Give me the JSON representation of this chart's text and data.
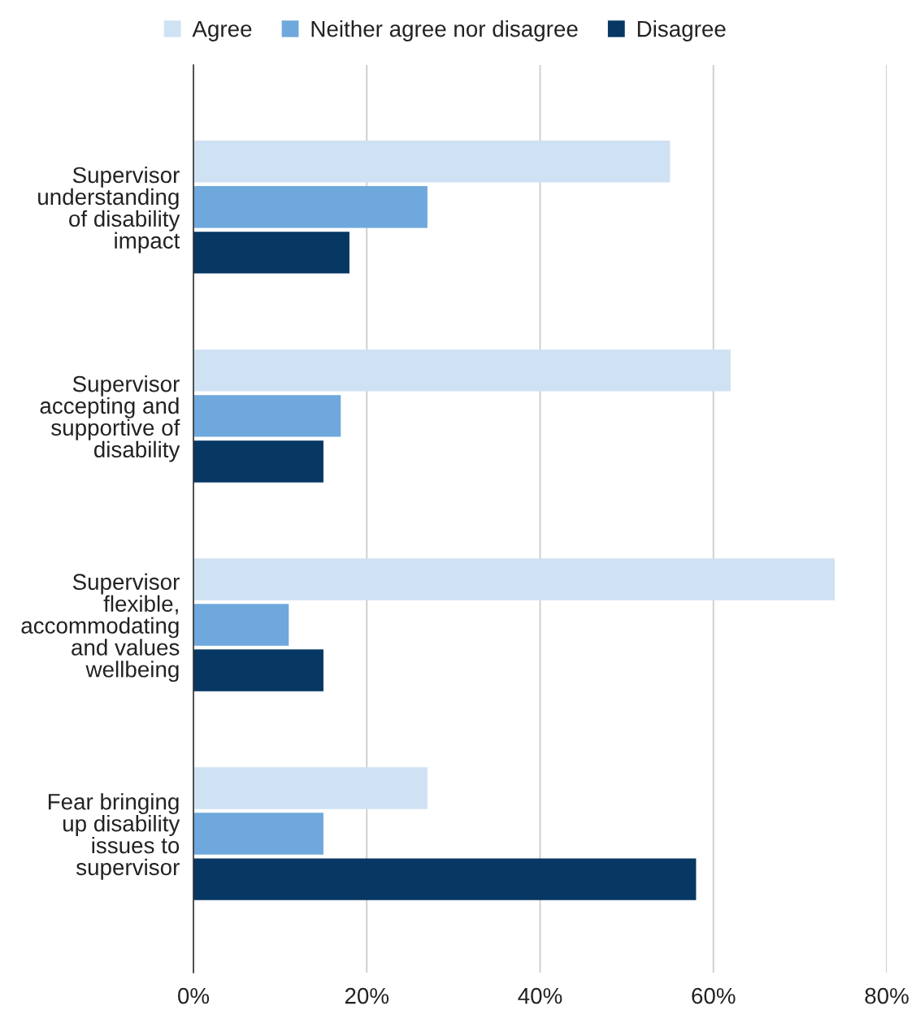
{
  "chart_data": {
    "type": "bar",
    "orientation": "horizontal",
    "categories": [
      "Supervisor\nunderstanding\nof disability\nimpact",
      "Supervisor\naccepting and\nsupportive of\ndisability",
      "Supervisor\nflexible,\naccommodating\nand values\nwellbeing",
      "Fear bringing\nup disability\nissues to\nsupervisor"
    ],
    "series": [
      {
        "name": "Agree",
        "color": "#cfe2f3",
        "values": [
          55,
          62,
          74,
          27
        ]
      },
      {
        "name": "Neither agree nor disagree",
        "color": "#6fa8dc",
        "values": [
          27,
          17,
          11,
          15
        ]
      },
      {
        "name": "Disagree",
        "color": "#073763",
        "values": [
          18,
          15,
          15,
          58
        ]
      }
    ],
    "xlim": [
      0,
      80
    ],
    "xticks": [
      {
        "value": 0,
        "label": "0%"
      },
      {
        "value": 20,
        "label": "20%"
      },
      {
        "value": 40,
        "label": "40%"
      },
      {
        "value": 60,
        "label": "60%"
      },
      {
        "value": 80,
        "label": "80%"
      }
    ],
    "grid": "x",
    "legend": "top"
  }
}
